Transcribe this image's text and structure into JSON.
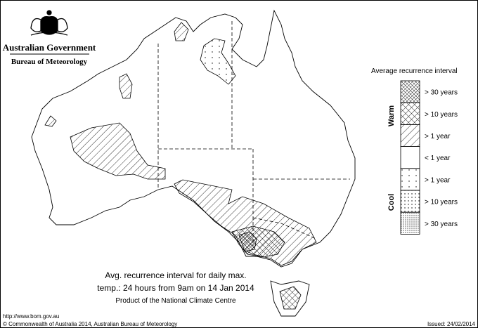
{
  "header": {
    "government": "Australian Government",
    "bureau": "Bureau of Meteorology"
  },
  "legend": {
    "title": "Average recurrence interval",
    "groups": [
      "Warm",
      "Cool"
    ],
    "items": [
      "> 30 years",
      "> 10 years",
      "> 1 year",
      "< 1 year",
      "> 1 year",
      "> 10 years",
      "> 30 years"
    ]
  },
  "caption": {
    "lines": [
      "Avg. recurrence interval for daily max.",
      "temp.: 24 hours from 9am on 14 Jan 2014"
    ],
    "credit": "Product of the National Climate Centre"
  },
  "footer": {
    "url": "http://www.bom.gov.au",
    "copyright": "© Commonwealth of Australia 2014, Australian Bureau of Meteorology",
    "issued": "Issued: 24/02/2014"
  }
}
